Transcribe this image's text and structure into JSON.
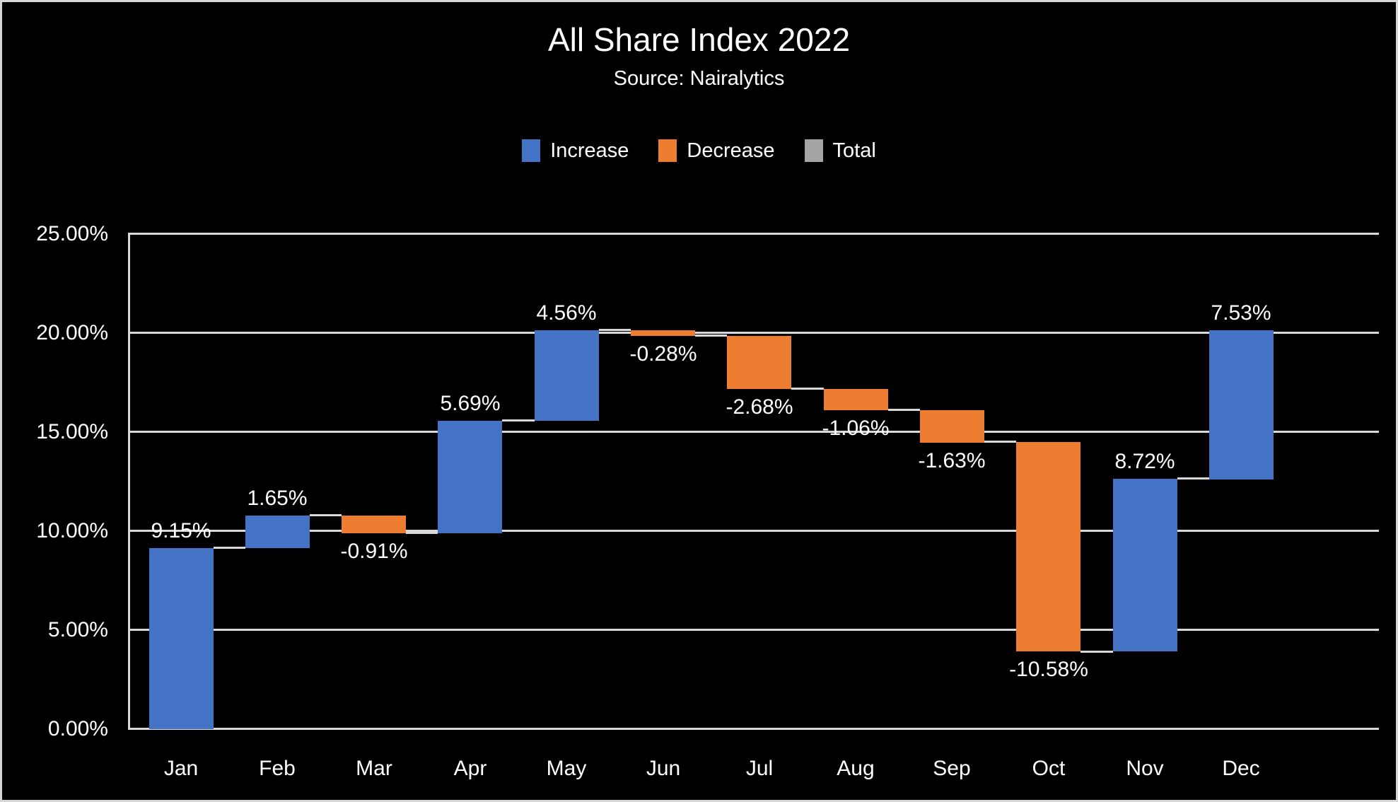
{
  "title": "All Share Index 2022",
  "subtitle": "Source: Nairalytics",
  "legend": [
    {
      "label": "Increase",
      "color": "#4472C4"
    },
    {
      "label": "Decrease",
      "color": "#ED7D31"
    },
    {
      "label": "Total",
      "color": "#A5A5A5"
    }
  ],
  "chart_data": {
    "type": "bar",
    "subtype": "waterfall",
    "title": "All Share Index 2022",
    "subtitle": "Source: Nairalytics",
    "categories": [
      "Jan",
      "Feb",
      "Mar",
      "Apr",
      "May",
      "Jun",
      "Jul",
      "Aug",
      "Sep",
      "Oct",
      "Nov",
      "Dec"
    ],
    "values": [
      9.15,
      1.65,
      -0.91,
      5.69,
      4.56,
      -0.28,
      -2.68,
      -1.06,
      -1.63,
      -10.58,
      8.72,
      7.53
    ],
    "data_labels": [
      "9.15%",
      "1.65%",
      "-0.91%",
      "5.69%",
      "4.56%",
      "-0.28%",
      "-2.68%",
      "-1.06%",
      "-1.63%",
      "-10.58%",
      "8.72%",
      "7.53%"
    ],
    "cumulative_end_values": [
      9.15,
      10.8,
      9.89,
      15.58,
      20.14,
      19.86,
      17.18,
      16.12,
      14.49,
      3.91,
      12.63,
      20.16
    ],
    "xlabel": "",
    "ylabel": "",
    "ylim": [
      0,
      25
    ],
    "ytick_step": 5,
    "ytick_labels": [
      "0.00%",
      "5.00%",
      "10.00%",
      "15.00%",
      "20.00%",
      "25.00%"
    ],
    "grid": true,
    "legend_position": "top",
    "legend_entries": [
      "Increase",
      "Decrease",
      "Total"
    ],
    "colors": {
      "increase": "#4472C4",
      "decrease": "#ED7D31",
      "total": "#A5A5A5",
      "gridline": "#D9D9D9",
      "connector": "#D9D9D9",
      "axis_line": "#D9D9D9",
      "background": "#000000",
      "text": "#FFFFFF"
    }
  }
}
